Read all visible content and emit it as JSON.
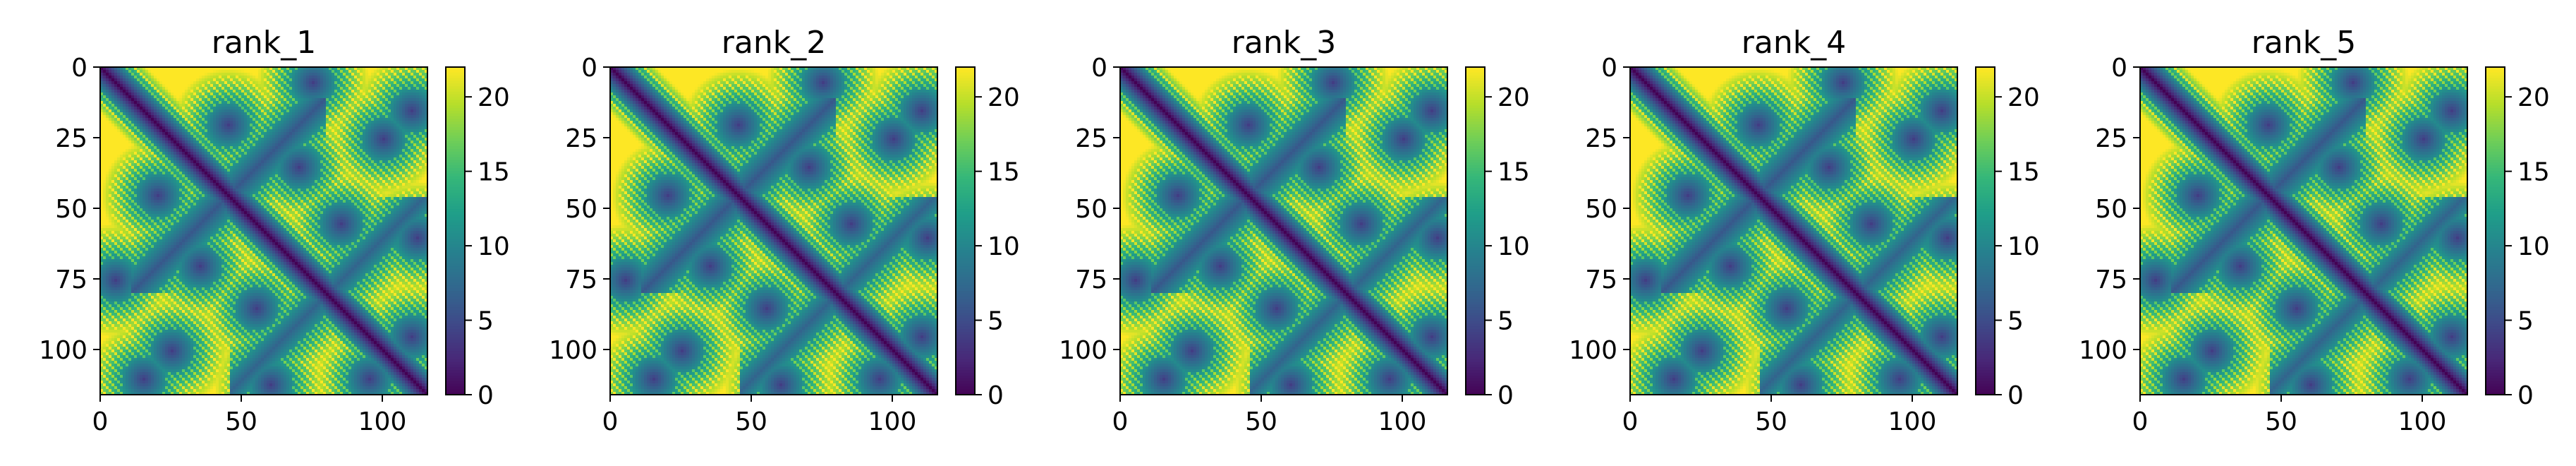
{
  "figure": {
    "colormap": "viridis",
    "colormap_stops": [
      "#440154",
      "#482878",
      "#3e4a89",
      "#31688e",
      "#26828e",
      "#1f9e89",
      "#35b779",
      "#6ece58",
      "#b5de2b",
      "#fde725"
    ]
  },
  "chart_data": [
    {
      "type": "heatmap",
      "title": "rank_1",
      "matrix_size": 116,
      "xlim": [
        0,
        116
      ],
      "ylim": [
        116,
        0
      ],
      "xticks": [
        0,
        50,
        100
      ],
      "yticks": [
        0,
        25,
        50,
        75,
        100
      ],
      "colorbar": {
        "range": [
          0,
          22
        ],
        "ticks": [
          0,
          5,
          10,
          15,
          20
        ]
      },
      "values_description_free": true
    },
    {
      "type": "heatmap",
      "title": "rank_2",
      "matrix_size": 116,
      "xlim": [
        0,
        116
      ],
      "ylim": [
        116,
        0
      ],
      "xticks": [
        0,
        50,
        100
      ],
      "yticks": [
        0,
        25,
        50,
        75,
        100
      ],
      "colorbar": {
        "range": [
          0,
          22
        ],
        "ticks": [
          0,
          5,
          10,
          15,
          20
        ]
      }
    },
    {
      "type": "heatmap",
      "title": "rank_3",
      "matrix_size": 116,
      "xlim": [
        0,
        116
      ],
      "ylim": [
        116,
        0
      ],
      "xticks": [
        0,
        50,
        100
      ],
      "yticks": [
        0,
        25,
        50,
        75,
        100
      ],
      "colorbar": {
        "range": [
          0,
          22
        ],
        "ticks": [
          0,
          5,
          10,
          15,
          20
        ]
      }
    },
    {
      "type": "heatmap",
      "title": "rank_4",
      "matrix_size": 116,
      "xlim": [
        0,
        116
      ],
      "ylim": [
        116,
        0
      ],
      "xticks": [
        0,
        50,
        100
      ],
      "yticks": [
        0,
        25,
        50,
        75,
        100
      ],
      "colorbar": {
        "range": [
          0,
          22
        ],
        "ticks": [
          0,
          5,
          10,
          15,
          20
        ]
      }
    },
    {
      "type": "heatmap",
      "title": "rank_5",
      "matrix_size": 116,
      "xlim": [
        0,
        116
      ],
      "ylim": [
        116,
        0
      ],
      "xticks": [
        0,
        50,
        100
      ],
      "yticks": [
        0,
        25,
        50,
        75,
        100
      ],
      "colorbar": {
        "range": [
          0,
          22
        ],
        "ticks": [
          0,
          5,
          10,
          15,
          20
        ]
      }
    }
  ]
}
